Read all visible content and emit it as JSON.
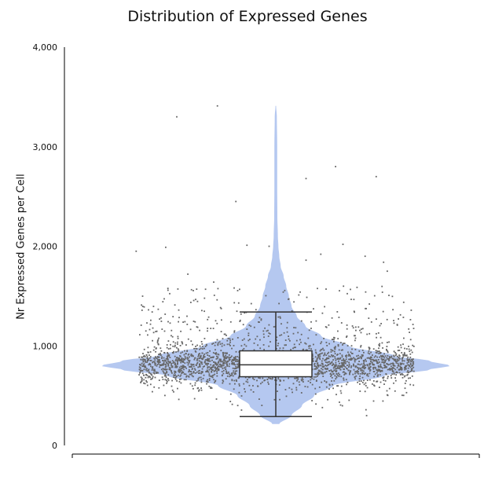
{
  "chart_data": {
    "type": "violin",
    "title": "Distribution of Expressed Genes",
    "xlabel": "",
    "ylabel": "Nr Expressed Genes per Cell",
    "ylim": [
      0,
      4000
    ],
    "yticks": [
      0,
      1000,
      2000,
      3000,
      4000
    ],
    "ytick_labels": [
      "0",
      "1,000",
      "2,000",
      "3,000",
      "4,000"
    ],
    "grid": false,
    "legend": "none",
    "series": [
      {
        "box": {
          "min": 290,
          "q1": 690,
          "median": 810,
          "q3": 950,
          "max": 1340
        },
        "violin_range": [
          215,
          3410
        ],
        "density_profile": [
          [
            215,
            0.02
          ],
          [
            300,
            0.09
          ],
          [
            400,
            0.15
          ],
          [
            500,
            0.22
          ],
          [
            600,
            0.33
          ],
          [
            700,
            0.62
          ],
          [
            760,
            0.88
          ],
          [
            800,
            1.0
          ],
          [
            850,
            0.88
          ],
          [
            900,
            0.68
          ],
          [
            1000,
            0.42
          ],
          [
            1100,
            0.26
          ],
          [
            1200,
            0.17
          ],
          [
            1300,
            0.12
          ],
          [
            1400,
            0.09
          ],
          [
            1500,
            0.075
          ],
          [
            1600,
            0.06
          ],
          [
            1700,
            0.045
          ],
          [
            1800,
            0.028
          ],
          [
            1900,
            0.02
          ],
          [
            2000,
            0.015
          ],
          [
            2100,
            0.012
          ],
          [
            2300,
            0.009
          ],
          [
            2600,
            0.008
          ],
          [
            3000,
            0.008
          ],
          [
            3300,
            0.006
          ],
          [
            3410,
            0.002
          ]
        ],
        "scatter_outliers": [
          {
            "x": 0.34,
            "y": 3410
          },
          {
            "x": 0.23,
            "y": 3300
          },
          {
            "x": 0.66,
            "y": 2800
          },
          {
            "x": 0.77,
            "y": 2700
          },
          {
            "x": 0.58,
            "y": 2680
          },
          {
            "x": 0.39,
            "y": 2450
          },
          {
            "x": 0.68,
            "y": 2020
          },
          {
            "x": 0.48,
            "y": 2000
          },
          {
            "x": 0.42,
            "y": 2010
          },
          {
            "x": 0.2,
            "y": 1990
          },
          {
            "x": 0.12,
            "y": 1950
          },
          {
            "x": 0.62,
            "y": 1920
          },
          {
            "x": 0.79,
            "y": 1840
          },
          {
            "x": 0.74,
            "y": 1900
          },
          {
            "x": 0.58,
            "y": 1860
          },
          {
            "x": 0.26,
            "y": 1720
          },
          {
            "x": 0.8,
            "y": 1750
          },
          {
            "x": 0.33,
            "y": 1640
          }
        ]
      }
    ],
    "colors": {
      "violin": "#b5c8f0",
      "points": "#666666",
      "box_fill": "#ffffff",
      "box_line": "#333333",
      "axis": "#000000"
    }
  }
}
